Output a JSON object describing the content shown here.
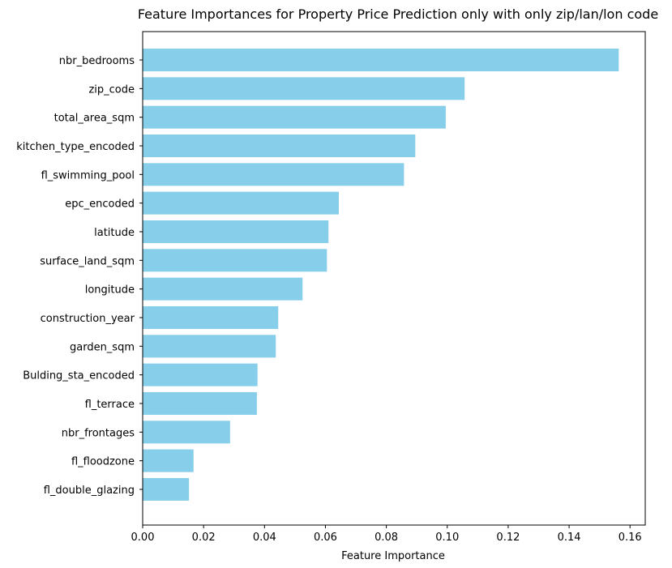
{
  "chart_data": {
    "type": "bar",
    "orientation": "horizontal",
    "title": "Feature Importances for Property Price Prediction only with only zip/lan/lon code",
    "xlabel": "Feature Importance",
    "ylabel": "",
    "xlim": [
      0,
      0.165
    ],
    "xticks": [
      0.0,
      0.02,
      0.04,
      0.06,
      0.08,
      0.1,
      0.12,
      0.14,
      0.16
    ],
    "xtick_labels": [
      "0.00",
      "0.02",
      "0.04",
      "0.06",
      "0.08",
      "0.10",
      "0.12",
      "0.14",
      "0.16"
    ],
    "grid": false,
    "bar_color": "#87CEEB",
    "categories": [
      "nbr_bedrooms",
      "zip_code",
      "total_area_sqm",
      "kitchen_type_encoded",
      "fl_swimming_pool",
      "epc_encoded",
      "latitude",
      "surface_land_sqm",
      "longitude",
      "construction_year",
      "garden_sqm",
      "Bulding_sta_encoded",
      "fl_terrace",
      "nbr_frontages",
      "fl_floodzone",
      "fl_double_glazing"
    ],
    "values": [
      0.1563,
      0.1057,
      0.0995,
      0.0895,
      0.0858,
      0.0644,
      0.061,
      0.0605,
      0.0525,
      0.0445,
      0.0437,
      0.0377,
      0.0375,
      0.0287,
      0.0167,
      0.0152
    ]
  }
}
